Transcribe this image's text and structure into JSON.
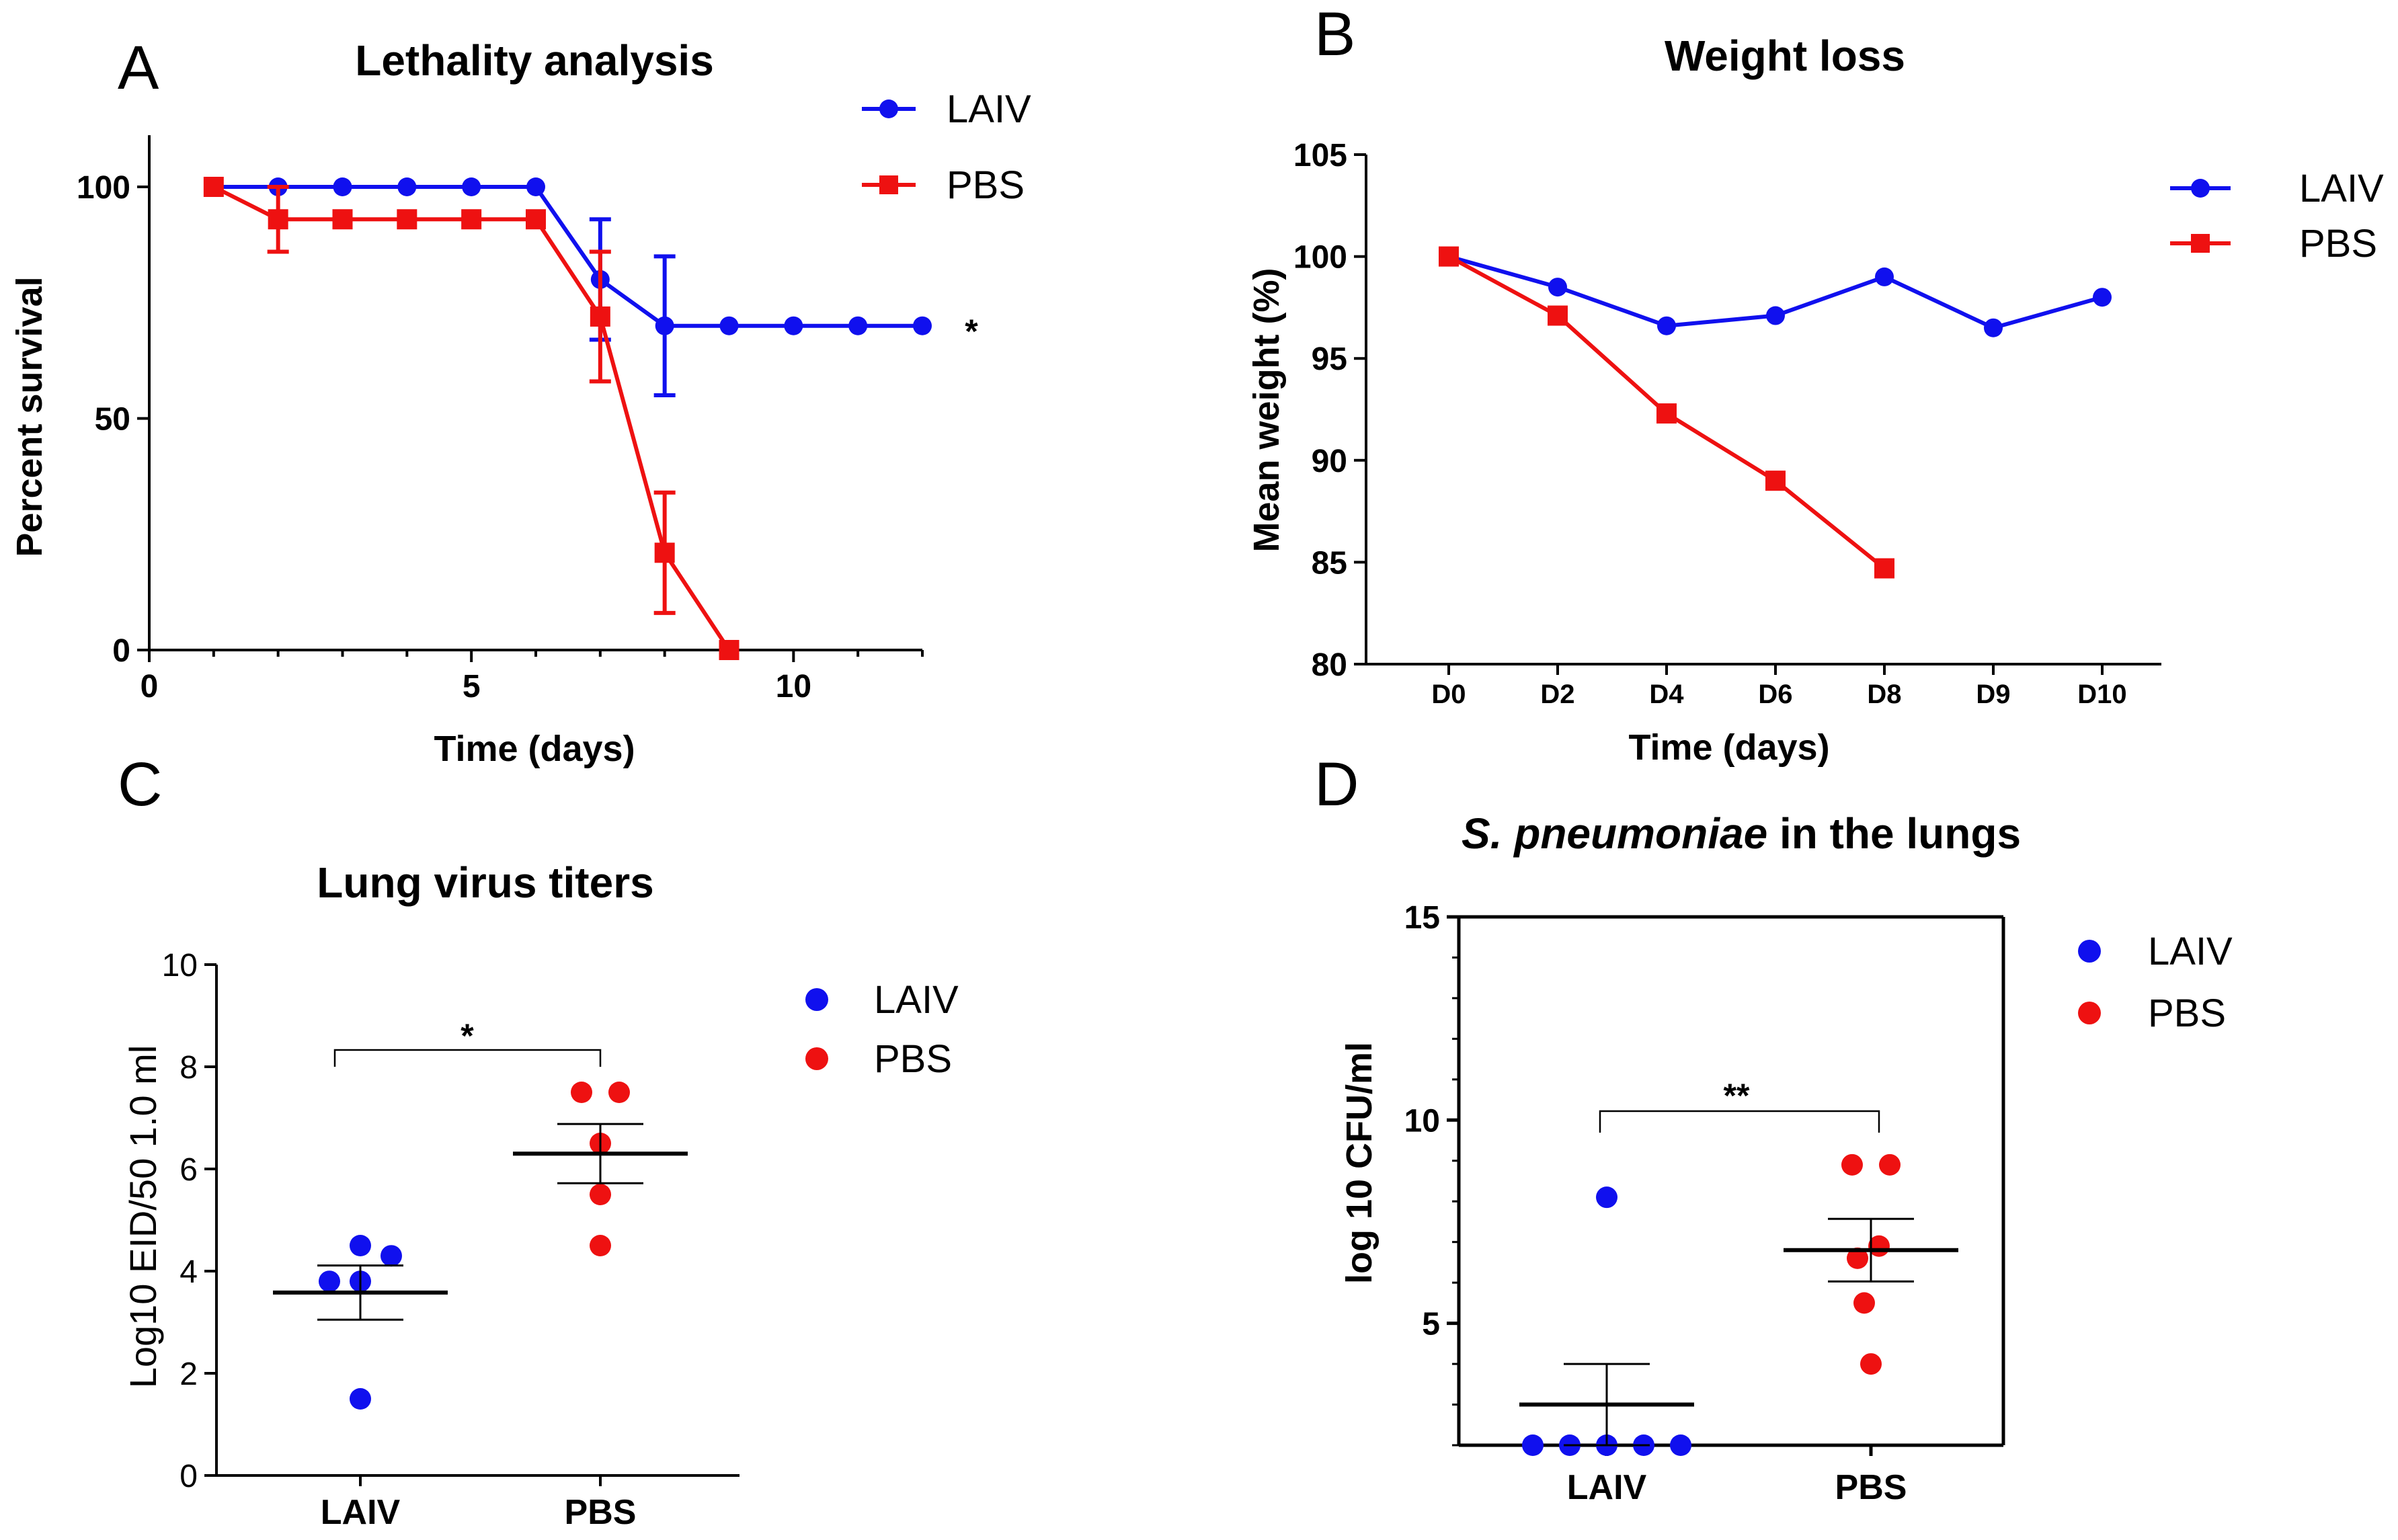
{
  "colors": {
    "laiv": "#1010ee",
    "pbs": "#ee1111",
    "axis": "#000000"
  },
  "chart_data": [
    {
      "panel": "A",
      "type": "line",
      "title": "Lethality analysis",
      "xlabel": "Time (days)",
      "ylabel": "Percent survival",
      "xlim": [
        0,
        12
      ],
      "ylim": [
        0,
        110
      ],
      "xticks": [
        0,
        5,
        10
      ],
      "yticks": [
        0,
        50,
        100
      ],
      "annotation": "*",
      "legend": [
        "LAIV",
        "PBS"
      ],
      "series": [
        {
          "name": "LAIV",
          "x": [
            1,
            2,
            3,
            4,
            5,
            6,
            7,
            8,
            9,
            10,
            11,
            12
          ],
          "y": [
            100,
            100,
            100,
            100,
            100,
            100,
            80,
            70,
            70,
            70,
            70,
            70
          ],
          "err": [
            0,
            0,
            0,
            0,
            0,
            0,
            13,
            15,
            0,
            0,
            0,
            0
          ]
        },
        {
          "name": "PBS",
          "x": [
            1,
            2,
            3,
            4,
            5,
            6,
            7,
            8,
            9
          ],
          "y": [
            100,
            93,
            93,
            93,
            93,
            93,
            72,
            21,
            0
          ],
          "err": [
            0,
            7,
            0,
            0,
            0,
            0,
            14,
            13,
            0
          ]
        }
      ]
    },
    {
      "panel": "B",
      "type": "line",
      "title": "Weight loss",
      "xlabel": "Time (days)",
      "ylabel": "Mean weight (%)",
      "categories": [
        "D0",
        "D2",
        "D4",
        "D6",
        "D8",
        "D9",
        "D10"
      ],
      "ylim": [
        80,
        105
      ],
      "yticks": [
        80,
        85,
        90,
        95,
        100,
        105
      ],
      "legend": [
        "LAIV",
        "PBS"
      ],
      "series": [
        {
          "name": "LAIV",
          "values": [
            100,
            98.5,
            96.6,
            97.1,
            99,
            96.5,
            98
          ]
        },
        {
          "name": "PBS",
          "values": [
            100,
            97.1,
            92.3,
            89,
            84.7,
            null,
            null
          ]
        }
      ]
    },
    {
      "panel": "C",
      "type": "scatter",
      "title": "Lung virus titers",
      "xlabel": "",
      "ylabel": "Log10 EID/50 1.0 ml",
      "categories": [
        "LAIV",
        "PBS"
      ],
      "ylim": [
        0,
        10
      ],
      "yticks": [
        0,
        2,
        4,
        6,
        8,
        10
      ],
      "annotation": "*",
      "legend": [
        "LAIV",
        "PBS"
      ],
      "groups": [
        {
          "name": "LAIV",
          "points": [
            4.5,
            4.3,
            3.8,
            3.8,
            1.5
          ],
          "mean": 3.58,
          "sem": 0.53
        },
        {
          "name": "PBS",
          "points": [
            7.5,
            7.5,
            6.5,
            5.5,
            4.5
          ],
          "mean": 6.3,
          "sem": 0.58
        }
      ]
    },
    {
      "panel": "D",
      "type": "scatter",
      "title_italic": "S. pneumoniae",
      "title_rest": " in the lungs",
      "xlabel": "",
      "ylabel": "log 10 CFU/ml",
      "categories": [
        "LAIV",
        "PBS"
      ],
      "ylim": [
        2,
        15
      ],
      "yticks": [
        5,
        10,
        15
      ],
      "annotation": "**",
      "legend": [
        "LAIV",
        "PBS"
      ],
      "groups": [
        {
          "name": "LAIV",
          "points": [
            8.1,
            2,
            2,
            2,
            2,
            2
          ],
          "mean": 3.0,
          "sem": 1.0
        },
        {
          "name": "PBS",
          "points": [
            8.9,
            8.9,
            6.9,
            6.6,
            5.5,
            4.0
          ],
          "mean": 6.8,
          "sem": 0.77
        }
      ]
    }
  ]
}
